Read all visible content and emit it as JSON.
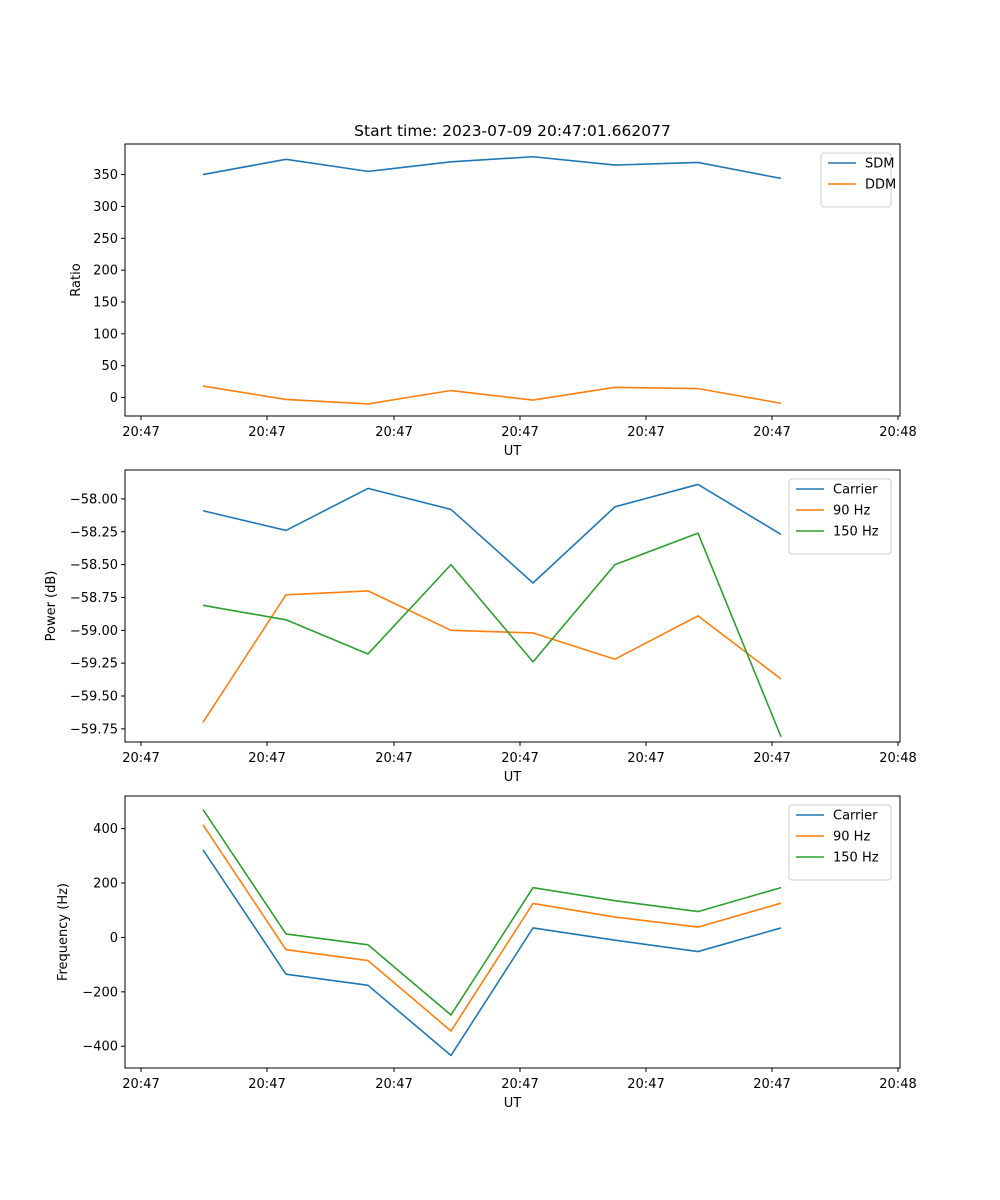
{
  "figure_title": "Start time: 2023-07-09 20:47:01.662077",
  "chart_data": [
    {
      "type": "line",
      "title": "Start time: 2023-07-09 20:47:01.662077",
      "xlabel": "UT",
      "ylabel": "Ratio",
      "x_tick_labels": [
        "20:47",
        "20:47",
        "20:47",
        "20:47",
        "20:47",
        "20:47",
        "20:48"
      ],
      "ylim": [
        -29,
        398
      ],
      "y_ticks": [
        0,
        50,
        100,
        150,
        200,
        250,
        300,
        350
      ],
      "y_tick_labels": [
        "0",
        "50",
        "100",
        "150",
        "200",
        "250",
        "300",
        "350"
      ],
      "x": [
        1,
        2,
        3,
        4,
        5,
        6,
        7,
        8
      ],
      "series": [
        {
          "name": "SDM",
          "color": "#1f77b4",
          "values": [
            350,
            374,
            355,
            370,
            378,
            365,
            369,
            344
          ]
        },
        {
          "name": "DDM",
          "color": "#ff7f0e",
          "values": [
            18,
            -3,
            -10,
            11,
            -4,
            16,
            14,
            -9
          ]
        }
      ],
      "legend": "top-right"
    },
    {
      "type": "line",
      "xlabel": "UT",
      "ylabel": "Power (dB)",
      "x_tick_labels": [
        "20:47",
        "20:47",
        "20:47",
        "20:47",
        "20:47",
        "20:47",
        "20:48"
      ],
      "ylim": [
        -59.85,
        -57.78
      ],
      "y_ticks": [
        -58.0,
        -58.25,
        -58.5,
        -58.75,
        -59.0,
        -59.25,
        -59.5,
        -59.75
      ],
      "y_tick_labels": [
        "−58.00",
        "−58.25",
        "−58.50",
        "−58.75",
        "−59.00",
        "−59.25",
        "−59.50",
        "−59.75"
      ],
      "x": [
        1,
        2,
        3,
        4,
        5,
        6,
        7,
        8
      ],
      "series": [
        {
          "name": "Carrier",
          "color": "#1f77b4",
          "values": [
            -58.09,
            -58.24,
            -57.92,
            -58.08,
            -58.64,
            -58.06,
            -57.89,
            -58.27
          ]
        },
        {
          "name": "90 Hz",
          "color": "#ff7f0e",
          "values": [
            -59.7,
            -58.73,
            -58.7,
            -59.0,
            -59.02,
            -59.22,
            -58.89,
            -59.37
          ]
        },
        {
          "name": "150 Hz",
          "color": "#2ca02c",
          "values": [
            -58.81,
            -58.92,
            -59.18,
            -58.5,
            -59.24,
            -58.5,
            -58.26,
            -59.81
          ]
        }
      ],
      "legend": "top-right"
    },
    {
      "type": "line",
      "xlabel": "UT",
      "ylabel": "Frequency (Hz)",
      "x_tick_labels": [
        "20:47",
        "20:47",
        "20:47",
        "20:47",
        "20:47",
        "20:47",
        "20:48"
      ],
      "ylim": [
        -480,
        520
      ],
      "y_ticks": [
        400,
        200,
        0,
        -200,
        -400
      ],
      "y_tick_labels": [
        "400",
        "200",
        "0",
        "−200",
        "−400"
      ],
      "x": [
        1,
        2,
        3,
        4,
        5,
        6,
        7,
        8
      ],
      "series": [
        {
          "name": "Carrier",
          "color": "#1f77b4",
          "values": [
            322,
            -135,
            -176,
            -434,
            35,
            -10,
            -52,
            35
          ]
        },
        {
          "name": "90 Hz",
          "color": "#ff7f0e",
          "values": [
            414,
            -45,
            -85,
            -344,
            125,
            75,
            38,
            126
          ]
        },
        {
          "name": "150 Hz",
          "color": "#2ca02c",
          "values": [
            470,
            13,
            -27,
            -285,
            183,
            135,
            95,
            183
          ]
        }
      ],
      "legend": "top-right"
    }
  ]
}
